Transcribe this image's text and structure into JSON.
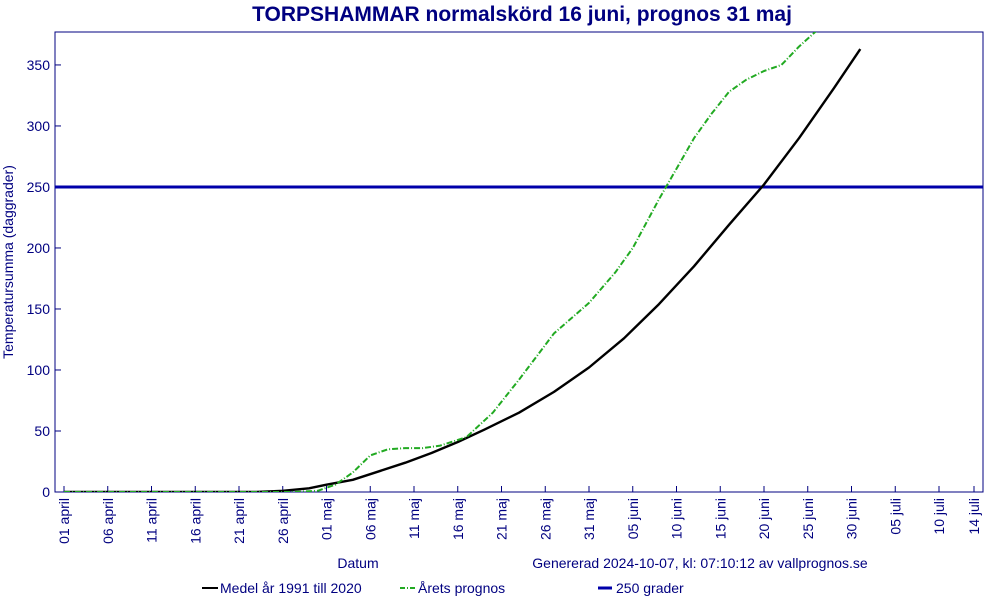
{
  "chart_data": {
    "type": "line",
    "title": "TORPSHAMMAR normalskörd 16 juni, prognos 31 maj",
    "xlabel": "Datum",
    "ylabel": "Temperatursumma (daggrader)",
    "generated": "Genererad 2024-10-07, kl: 07:10:12 av vallprognos.se",
    "x_ticks": [
      "01 april",
      "06 april",
      "11 april",
      "16 april",
      "21 april",
      "26 april",
      "01 maj",
      "06 maj",
      "11 maj",
      "16 maj",
      "21 maj",
      "26 maj",
      "31 maj",
      "05 juni",
      "10 juni",
      "15 juni",
      "20 juni",
      "25 juni",
      "30 juni",
      "05 juli",
      "10 juli",
      "14 juli"
    ],
    "y_ticks": [
      0,
      50,
      100,
      150,
      200,
      250,
      300,
      350
    ],
    "xlim": [
      0,
      104
    ],
    "ylim": [
      0,
      377
    ],
    "grid": false,
    "legend_position": "bottom",
    "colors": {
      "medel": "#000000",
      "prognos": "#22aa22",
      "threshold": "#0000aa",
      "text": "#000080"
    },
    "series": [
      {
        "name": "Medel år 1991 till 2020",
        "style": "solid",
        "x": [
          0,
          22,
          25,
          28,
          30,
          33,
          36,
          39,
          42,
          45,
          48,
          52,
          56,
          60,
          64,
          68,
          72,
          76,
          80,
          84,
          88,
          91
        ],
        "y": [
          0,
          0,
          1,
          3,
          6,
          10,
          17,
          24,
          32,
          41,
          51,
          65,
          82,
          102,
          126,
          154,
          185,
          219,
          252,
          290,
          331,
          363
        ]
      },
      {
        "name": "Årets prognos",
        "style": "dash-dot",
        "x": [
          0,
          26,
          29,
          31,
          33,
          35,
          37,
          39,
          41,
          43,
          46,
          49,
          52,
          56,
          60,
          63,
          65,
          68,
          70,
          72,
          74,
          76,
          78,
          80,
          82,
          84,
          86
        ],
        "y": [
          0,
          0,
          1,
          6,
          16,
          30,
          35,
          36,
          36,
          38,
          45,
          65,
          92,
          130,
          155,
          180,
          200,
          240,
          265,
          290,
          310,
          328,
          338,
          345,
          350,
          365,
          378
        ]
      },
      {
        "name": "250 grader",
        "style": "solid",
        "x": [
          0,
          104
        ],
        "y": [
          250,
          250
        ]
      }
    ]
  }
}
